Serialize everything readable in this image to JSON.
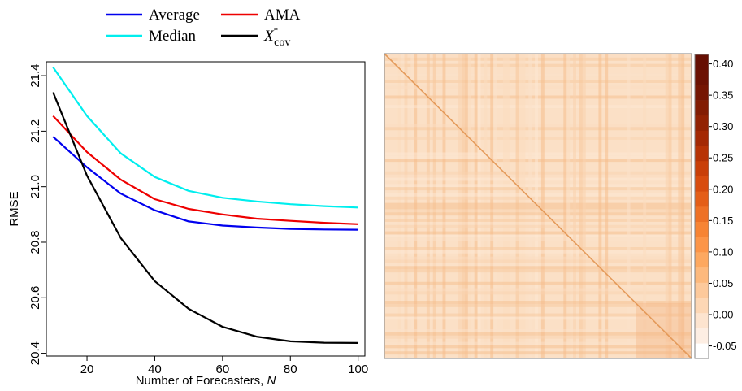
{
  "chart_data": [
    {
      "type": "line",
      "xlabel": "Number of Forecasters, ",
      "xlabel_var": "N",
      "ylabel": "RMSE",
      "xlim": [
        8,
        102
      ],
      "ylim": [
        20.39,
        21.45
      ],
      "x_ticks": [
        20,
        40,
        60,
        80,
        100
      ],
      "y_ticks": [
        20.4,
        20.6,
        20.8,
        21.0,
        21.2,
        21.4
      ],
      "y_tick_labels": [
        "20.4",
        "20.6",
        "20.8",
        "21.0",
        "21.2",
        "21.4"
      ],
      "x": [
        10,
        20,
        30,
        40,
        50,
        60,
        70,
        80,
        90,
        100
      ],
      "legend": "top",
      "series": [
        {
          "name": "Average",
          "color": "#0000ee",
          "values": [
            21.18,
            21.07,
            20.975,
            20.915,
            20.875,
            20.86,
            20.853,
            20.848,
            20.846,
            20.845
          ]
        },
        {
          "name": "AMA",
          "color": "#ee0000",
          "values": [
            21.255,
            21.125,
            21.025,
            20.955,
            20.92,
            20.9,
            20.885,
            20.877,
            20.87,
            20.865
          ]
        },
        {
          "name": "Median",
          "color": "#00eeee",
          "values": [
            21.43,
            21.255,
            21.12,
            21.035,
            20.985,
            20.96,
            20.947,
            20.937,
            20.93,
            20.925
          ]
        },
        {
          "name": "X",
          "name_sup": "*",
          "name_sub": "cov",
          "color": "#000000",
          "values": [
            21.34,
            21.04,
            20.815,
            20.66,
            20.56,
            20.495,
            20.46,
            20.443,
            20.438,
            20.437
          ]
        }
      ]
    },
    {
      "type": "heatmap",
      "grid": "none",
      "colorbar": {
        "range": [
          -0.07,
          0.415
        ],
        "ticks": [
          -0.05,
          0.0,
          0.05,
          0.1,
          0.15,
          0.2,
          0.25,
          0.3,
          0.35,
          0.4
        ],
        "tick_labels": [
          "-0.05",
          "0.00",
          "0.05",
          "0.10",
          "0.15",
          "0.20",
          "0.25",
          "0.30",
          "0.35",
          "0.40"
        ],
        "colors": [
          "#ffffff",
          "#fdeee3",
          "#fde4cf",
          "#fdd7b5",
          "#fdc99b",
          "#fdb97d",
          "#fda860",
          "#fc9548",
          "#f78434",
          "#ee7126",
          "#e45e18",
          "#d84c0e",
          "#c93f08",
          "#b73305",
          "#a42904",
          "#922203",
          "#821c03",
          "#751603",
          "#6c1203",
          "#660f03"
        ]
      },
      "diagonal_value": 0.15,
      "off_diagonal_typical": 0.03
    }
  ]
}
